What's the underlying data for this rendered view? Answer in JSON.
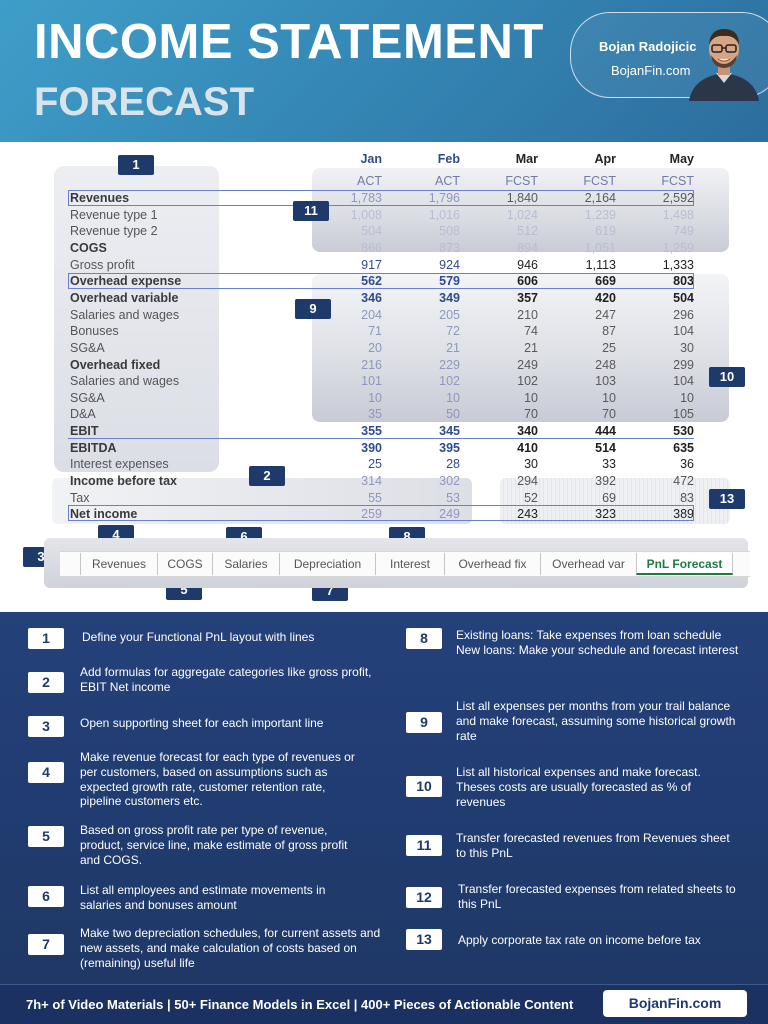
{
  "header": {
    "title_line1": "INCOME STATEMENT",
    "title_line2": "FORECAST",
    "author_name": "Bojan Radojicic",
    "author_site": "BojanFin.com"
  },
  "table": {
    "months": [
      "Jan",
      "Feb",
      "Mar",
      "Apr",
      "May"
    ],
    "types": [
      "ACT",
      "ACT",
      "FCST",
      "FCST",
      "FCST"
    ],
    "rows": [
      {
        "label": "Revenues",
        "values": [
          "1,783",
          "1,796",
          "1,840",
          "2,164",
          "2,592"
        ],
        "bold": true
      },
      {
        "label": "Revenue type 1",
        "values": [
          "1,008",
          "1,016",
          "1,024",
          "1,239",
          "1,498"
        ],
        "bold": false
      },
      {
        "label": "Revenue type 2",
        "values": [
          "504",
          "508",
          "512",
          "619",
          "749"
        ],
        "bold": false
      },
      {
        "label": "COGS",
        "values": [
          "866",
          "873",
          "894",
          "1,051",
          "1,259"
        ],
        "bold": true
      },
      {
        "label": "Gross profit",
        "values": [
          "917",
          "924",
          "946",
          "1,113",
          "1,333"
        ],
        "bold": false
      },
      {
        "label": "Overhead expense",
        "values": [
          "562",
          "579",
          "606",
          "669",
          "803"
        ],
        "bold": true
      },
      {
        "label": "Overhead variable",
        "values": [
          "346",
          "349",
          "357",
          "420",
          "504"
        ],
        "bold": true
      },
      {
        "label": "Salaries and wages",
        "values": [
          "204",
          "205",
          "210",
          "247",
          "296"
        ],
        "bold": false
      },
      {
        "label": "Bonuses",
        "values": [
          "71",
          "72",
          "74",
          "87",
          "104"
        ],
        "bold": false
      },
      {
        "label": "SG&A",
        "values": [
          "20",
          "21",
          "21",
          "25",
          "30"
        ],
        "bold": false
      },
      {
        "label": "Overhead fixed",
        "values": [
          "216",
          "229",
          "249",
          "248",
          "299"
        ],
        "bold": true
      },
      {
        "label": "Salaries and wages",
        "values": [
          "101",
          "102",
          "102",
          "103",
          "104"
        ],
        "bold": false
      },
      {
        "label": "SG&A",
        "values": [
          "10",
          "10",
          "10",
          "10",
          "10"
        ],
        "bold": false
      },
      {
        "label": "D&A",
        "values": [
          "35",
          "50",
          "70",
          "70",
          "105"
        ],
        "bold": false
      },
      {
        "label": "EBIT",
        "values": [
          "355",
          "345",
          "340",
          "444",
          "530"
        ],
        "bold": true
      },
      {
        "label": "EBITDA",
        "values": [
          "390",
          "395",
          "410",
          "514",
          "635"
        ],
        "bold": true
      },
      {
        "label": "Interest expenses",
        "values": [
          "25",
          "28",
          "30",
          "33",
          "36"
        ],
        "bold": false
      },
      {
        "label": "Income before tax",
        "values": [
          "314",
          "302",
          "294",
          "392",
          "472"
        ],
        "bold": true
      },
      {
        "label": "Tax",
        "values": [
          "55",
          "53",
          "52",
          "69",
          "83"
        ],
        "bold": false
      },
      {
        "label": "Net income",
        "values": [
          "259",
          "249",
          "243",
          "323",
          "389"
        ],
        "bold": true
      }
    ]
  },
  "badges": [
    "1",
    "2",
    "3",
    "4",
    "5",
    "6",
    "7",
    "8",
    "9",
    "10",
    "11",
    "13"
  ],
  "sheet_tabs": [
    "Revenues",
    "COGS",
    "Salaries",
    "Depreciation",
    "Interest",
    "Overhead fix",
    "Overhead var",
    "PnL Forecast"
  ],
  "steps_left": [
    {
      "num": "1",
      "text": "Define your Functional PnL layout with lines"
    },
    {
      "num": "2",
      "text": "Add formulas for aggregate categories like gross profit, EBIT Net income"
    },
    {
      "num": "3",
      "text": "Open supporting sheet for each important line"
    },
    {
      "num": "4",
      "text": "Make revenue forecast for each type of revenues or per customers, based on assumptions such as expected growth rate, customer retention rate, pipeline customers etc."
    },
    {
      "num": "5",
      "text": "Based on gross profit rate per type of revenue, product, service line, make estimate of gross profit and COGS."
    },
    {
      "num": "6",
      "text": "List all employees and estimate movements in salaries  and bonuses amount"
    },
    {
      "num": "7",
      "text": "Make two depreciation schedules, for current assets and new assets, and make calculation of costs based on (remaining) useful life"
    }
  ],
  "steps_right": [
    {
      "num": "8",
      "text": "Existing loans: Take expenses from loan schedule New loans: Make your schedule and forecast interest"
    },
    {
      "num": "9",
      "text": "List all expenses per months from your trail balance and make forecast, assuming some historical growth rate"
    },
    {
      "num": "10",
      "text": "List all historical expenses and make forecast. Theses costs are usually forecasted as % of revenues"
    },
    {
      "num": "11",
      "text": "Transfer forecasted revenues from Revenues sheet to this PnL"
    },
    {
      "num": "12",
      "text": "Transfer forecasted expenses from  related sheets to this PnL"
    },
    {
      "num": "13",
      "text": "Apply corporate tax rate on income before tax"
    }
  ],
  "footer": {
    "tagline": "7h+ of Video Materials | 50+ Finance Models in Excel | 400+ Pieces of Actionable Content",
    "button": "BojanFin.com"
  },
  "colors": {
    "header_blue": "#3588b6",
    "navy": "#1d3a6b",
    "act_blue": "#2f4b8f",
    "faded": "#a9aec4",
    "tab_green": "#1e7a45"
  }
}
